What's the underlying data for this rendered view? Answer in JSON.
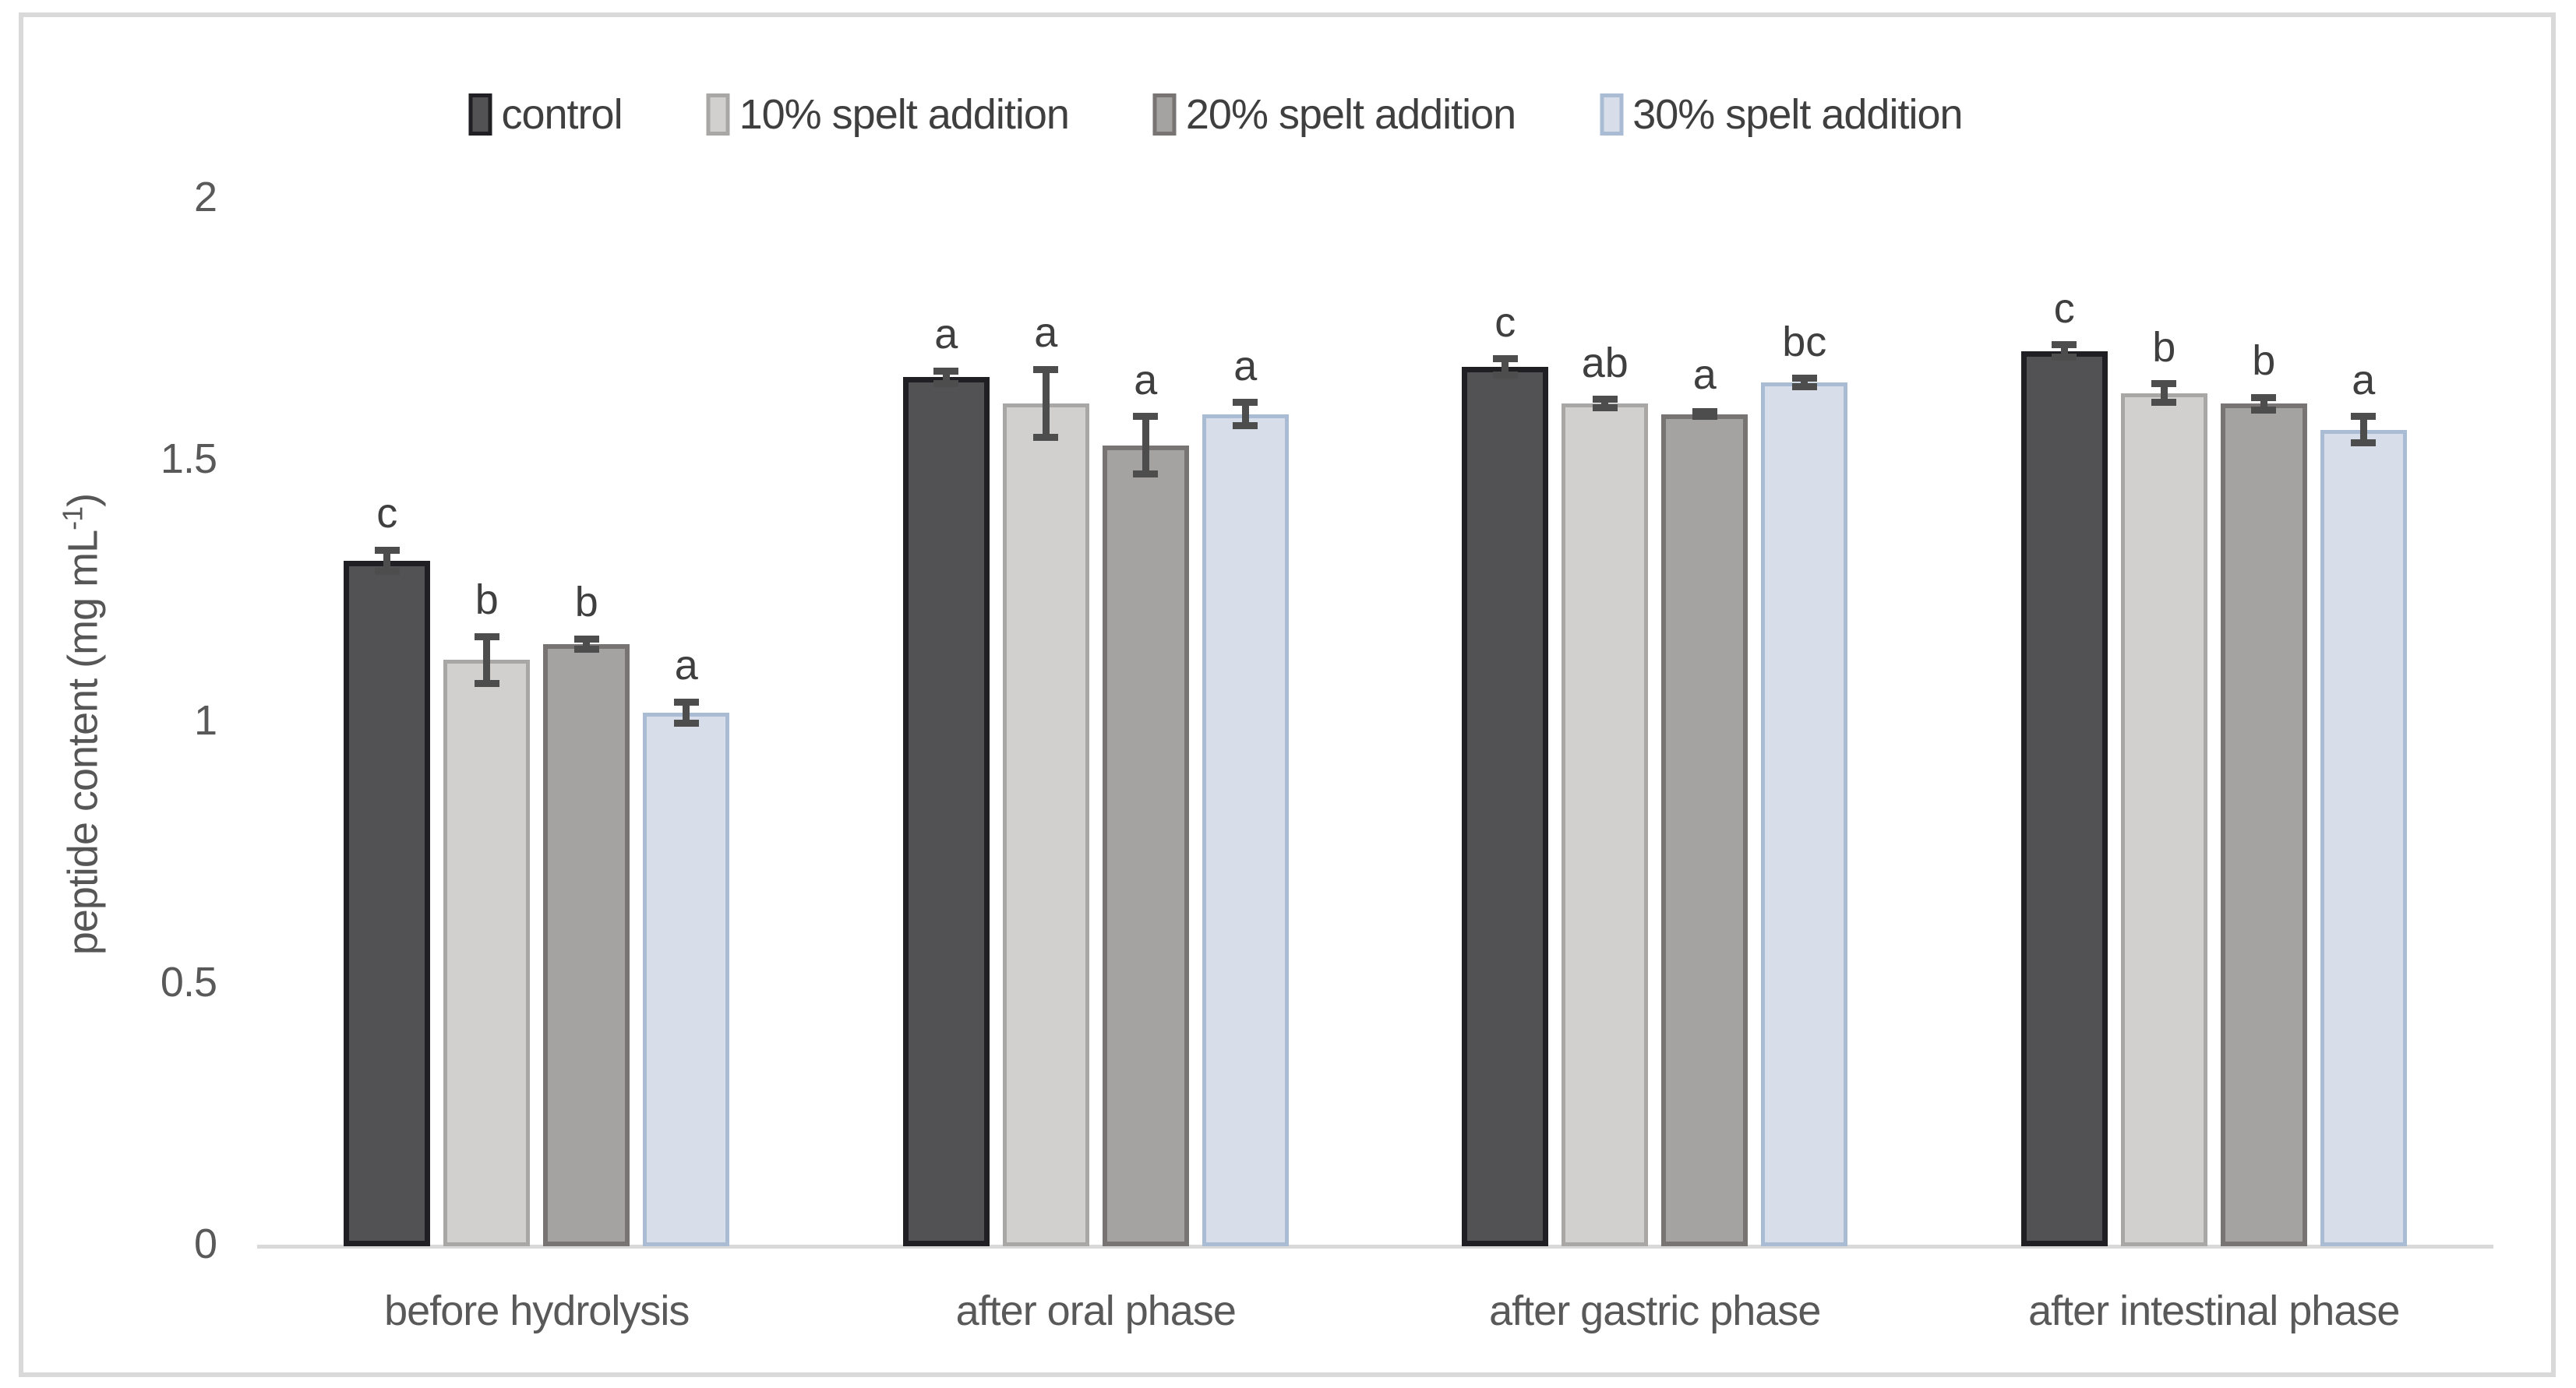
{
  "chart_data": {
    "type": "bar",
    "title": "",
    "ylabel": "peptide content (mg mL⁻¹)",
    "ylabel_pre": "peptide content (mg mL",
    "ylabel_sup": "-1",
    "ylabel_post": ")",
    "xlabel": "",
    "ylim": [
      0,
      2
    ],
    "grid": false,
    "legend_position": "top",
    "y_ticks": [
      0,
      0.5,
      1,
      1.5,
      2
    ],
    "y_tick_labels": [
      "0",
      "0.5",
      "1",
      "1.5",
      "2"
    ],
    "categories": [
      "before hydrolysis",
      "after oral phase",
      "after gastric phase",
      "after intestinal phase"
    ],
    "series": [
      {
        "name": "control",
        "fill": "#525254",
        "border": "#202024",
        "values": [
          1.31,
          1.66,
          1.68,
          1.71
        ],
        "errors": [
          0.02,
          0.012,
          0.015,
          0.012
        ],
        "letters": [
          "c",
          "a",
          "c",
          "c"
        ]
      },
      {
        "name": "10% spelt addition",
        "fill": "#d1d0ce",
        "border": "#a8a7a5",
        "values": [
          1.12,
          1.61,
          1.61,
          1.63
        ],
        "errors": [
          0.045,
          0.065,
          0.008,
          0.018
        ],
        "letters": [
          "b",
          "a",
          "ab",
          "b"
        ]
      },
      {
        "name": "20% spelt addition",
        "fill": "#a5a3a2",
        "border": "#787473",
        "values": [
          1.15,
          1.53,
          1.59,
          1.61
        ],
        "errors": [
          0.01,
          0.055,
          0.005,
          0.012
        ],
        "letters": [
          "b",
          "a",
          "a",
          "b"
        ]
      },
      {
        "name": "30% spelt addition",
        "fill": "#d7dee9",
        "border": "#a9bcd4",
        "values": [
          1.02,
          1.59,
          1.65,
          1.56
        ],
        "errors": [
          0.02,
          0.022,
          0.008,
          0.025
        ],
        "letters": [
          "a",
          "a",
          "bc",
          "a"
        ]
      }
    ],
    "error_bar_color": "#4d4d4d",
    "axis_line_color": "#d9d9d9",
    "text_color": "#595959"
  }
}
